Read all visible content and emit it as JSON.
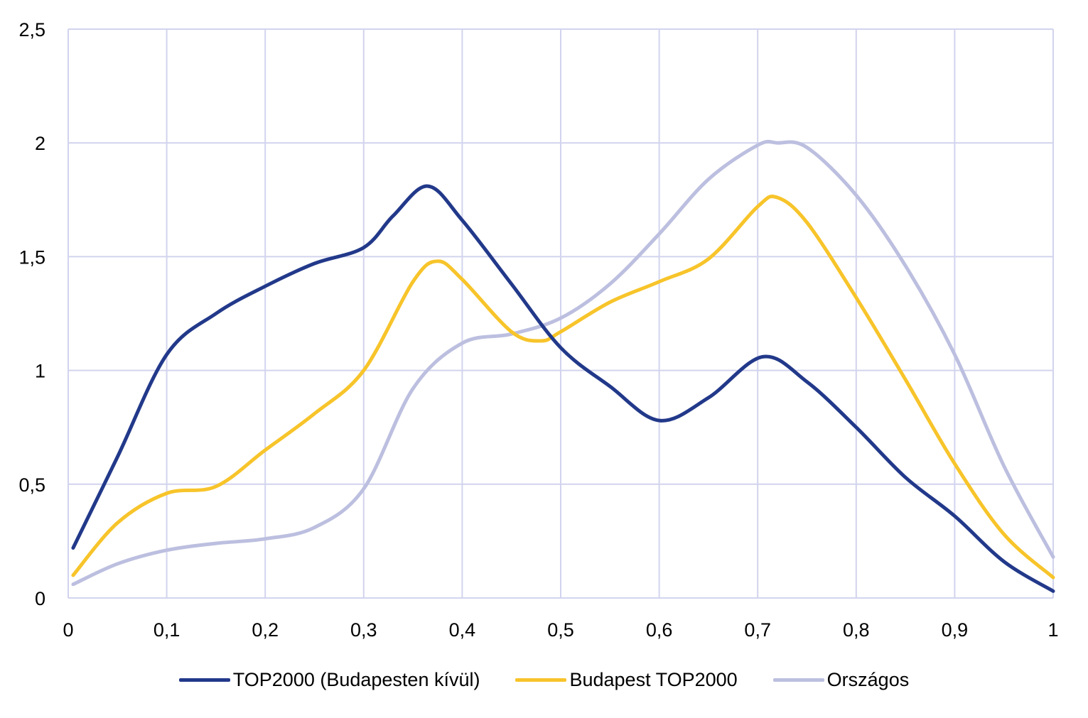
{
  "chart_data": {
    "type": "line",
    "title": "",
    "xlabel": "",
    "ylabel": "",
    "xlim": [
      0,
      1
    ],
    "ylim": [
      0,
      2.5
    ],
    "x_ticks": [
      "0",
      "0,1",
      "0,2",
      "0,3",
      "0,4",
      "0,5",
      "0,6",
      "0,7",
      "0,8",
      "0,9",
      "1"
    ],
    "y_ticks": [
      "0",
      "0,5",
      "1",
      "1,5",
      "2",
      "2,5"
    ],
    "grid": true,
    "smooth": true,
    "legend_position": "bottom",
    "series": [
      {
        "name": "TOP2000 (Budapesten kívül)",
        "color": "#22398a",
        "x": [
          0.005,
          0.05,
          0.1,
          0.15,
          0.2,
          0.25,
          0.3,
          0.33,
          0.365,
          0.4,
          0.45,
          0.5,
          0.55,
          0.6,
          0.65,
          0.705,
          0.75,
          0.8,
          0.85,
          0.9,
          0.95,
          1.0
        ],
        "y": [
          0.22,
          0.62,
          1.07,
          1.25,
          1.37,
          1.47,
          1.54,
          1.68,
          1.81,
          1.66,
          1.38,
          1.1,
          0.93,
          0.78,
          0.88,
          1.06,
          0.95,
          0.75,
          0.53,
          0.36,
          0.16,
          0.03
        ]
      },
      {
        "name": "Budapest TOP2000",
        "color": "#f7c42a",
        "x": [
          0.005,
          0.05,
          0.1,
          0.15,
          0.2,
          0.25,
          0.3,
          0.35,
          0.375,
          0.4,
          0.45,
          0.48,
          0.5,
          0.55,
          0.6,
          0.65,
          0.7,
          0.72,
          0.75,
          0.8,
          0.85,
          0.9,
          0.95,
          1.0
        ],
        "y": [
          0.1,
          0.33,
          0.46,
          0.49,
          0.65,
          0.81,
          1.0,
          1.39,
          1.48,
          1.4,
          1.17,
          1.13,
          1.17,
          1.3,
          1.39,
          1.49,
          1.72,
          1.76,
          1.65,
          1.32,
          0.96,
          0.59,
          0.28,
          0.09
        ]
      },
      {
        "name": "Országos",
        "color": "#bcbfdf",
        "x": [
          0.005,
          0.05,
          0.1,
          0.15,
          0.2,
          0.25,
          0.3,
          0.35,
          0.4,
          0.45,
          0.5,
          0.55,
          0.6,
          0.65,
          0.7,
          0.72,
          0.75,
          0.8,
          0.85,
          0.9,
          0.95,
          1.0
        ],
        "y": [
          0.06,
          0.15,
          0.21,
          0.24,
          0.26,
          0.31,
          0.48,
          0.92,
          1.12,
          1.16,
          1.23,
          1.38,
          1.6,
          1.84,
          1.99,
          2.0,
          1.98,
          1.77,
          1.46,
          1.07,
          0.58,
          0.18
        ]
      }
    ]
  }
}
